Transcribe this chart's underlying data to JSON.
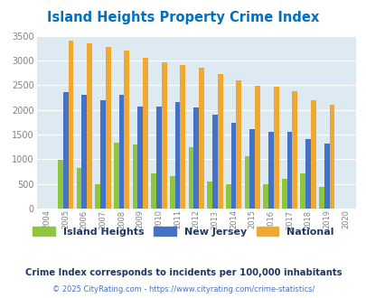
{
  "title": "Island Heights Property Crime Index",
  "years": [
    2004,
    2005,
    2006,
    2007,
    2008,
    2009,
    2010,
    2011,
    2012,
    2013,
    2014,
    2015,
    2016,
    2017,
    2018,
    2019,
    2020
  ],
  "island_heights": [
    0,
    980,
    820,
    490,
    1330,
    1290,
    720,
    660,
    1240,
    555,
    490,
    1060,
    490,
    610,
    710,
    445,
    0
  ],
  "new_jersey": [
    0,
    2360,
    2300,
    2200,
    2300,
    2060,
    2060,
    2150,
    2050,
    1900,
    1730,
    1610,
    1555,
    1555,
    1400,
    1310,
    0
  ],
  "national": [
    0,
    3410,
    3340,
    3265,
    3200,
    3050,
    2960,
    2915,
    2855,
    2730,
    2590,
    2490,
    2460,
    2380,
    2200,
    2100,
    0
  ],
  "island_color": "#8dc63f",
  "nj_color": "#4472c4",
  "national_color": "#f0a830",
  "bg_color": "#deeaf1",
  "ylim": [
    0,
    3500
  ],
  "tick_color": "#808080",
  "title_color": "#0070c0",
  "subtitle": "Crime Index corresponds to incidents per 100,000 inhabitants",
  "footer": "© 2025 CityRating.com - https://www.cityrating.com/crime-statistics/",
  "subtitle_color": "#1f3864",
  "footer_color": "#4472c4"
}
